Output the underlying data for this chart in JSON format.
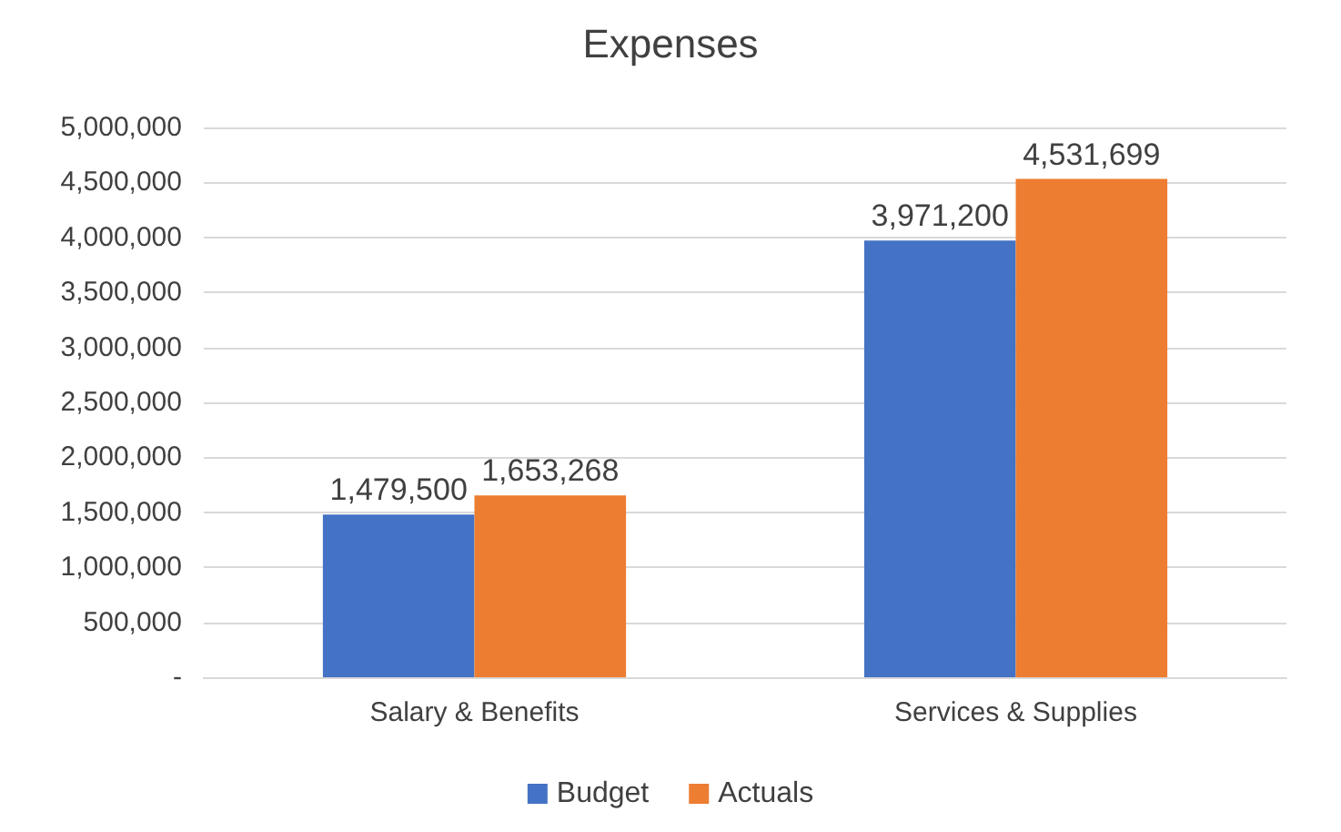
{
  "chart_data": {
    "type": "bar",
    "title": "Expenses",
    "categories": [
      "Salary & Benefits",
      "Services & Supplies"
    ],
    "series": [
      {
        "name": "Budget",
        "color": "#4472c4",
        "values": [
          1479500,
          3971200
        ],
        "value_labels": [
          "1,479,500",
          "3,971,200"
        ]
      },
      {
        "name": "Actuals",
        "color": "#ed7d31",
        "values": [
          1653268,
          4531699
        ],
        "value_labels": [
          "1,653,268",
          "4,531,699"
        ]
      }
    ],
    "ylim": [
      0,
      5000000
    ],
    "yticks": [
      {
        "value": 0,
        "label": "-"
      },
      {
        "value": 500000,
        "label": "500,000"
      },
      {
        "value": 1000000,
        "label": "1,000,000"
      },
      {
        "value": 1500000,
        "label": "1,500,000"
      },
      {
        "value": 2000000,
        "label": "2,000,000"
      },
      {
        "value": 2500000,
        "label": "2,500,000"
      },
      {
        "value": 3000000,
        "label": "3,000,000"
      },
      {
        "value": 3500000,
        "label": "3,500,000"
      },
      {
        "value": 4000000,
        "label": "4,000,000"
      },
      {
        "value": 4500000,
        "label": "4,500,000"
      },
      {
        "value": 5000000,
        "label": "5,000,000"
      }
    ],
    "grid": "y",
    "legend": "bottom"
  }
}
